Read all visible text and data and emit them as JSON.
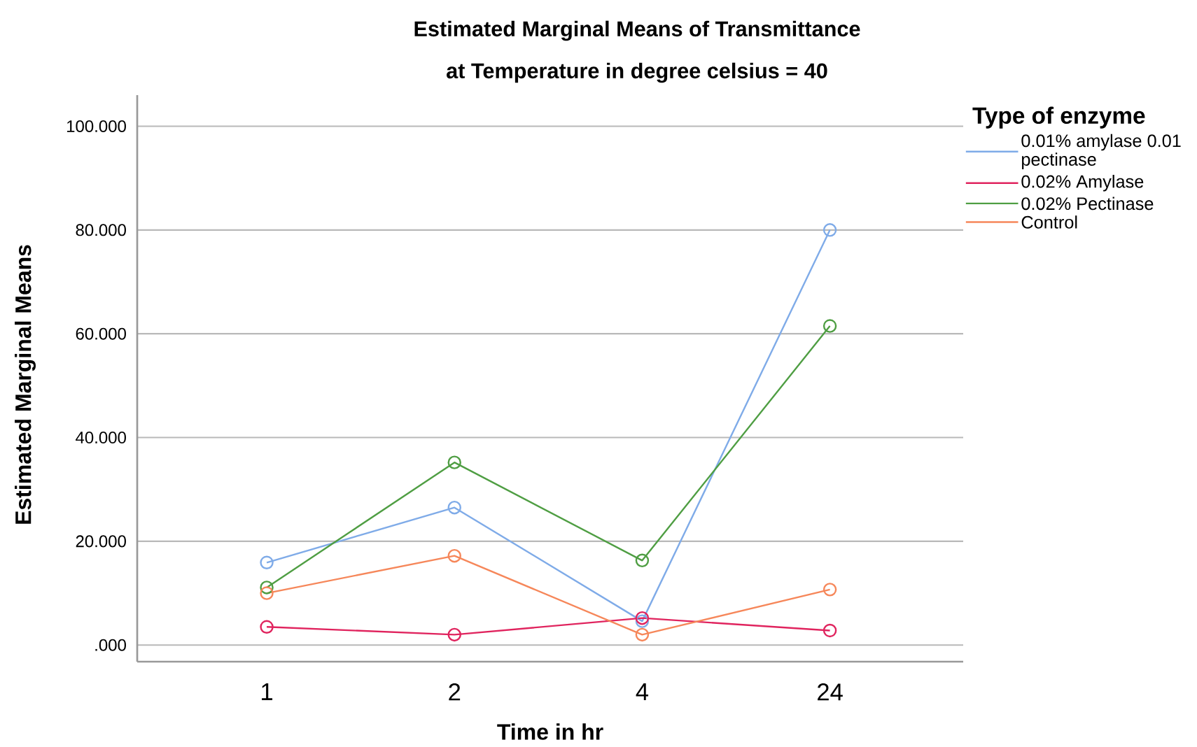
{
  "chart_data": {
    "type": "line",
    "title": [
      "Estimated Marginal Means of Transmittance",
      "at Temperature  in degree celsius = 40"
    ],
    "xlabel": "Time in hr",
    "ylabel": "Estimated Marginal Means",
    "legend_title": "Type of enzyme",
    "categories": [
      "1",
      "2",
      "4",
      "24"
    ],
    "series": [
      {
        "name": "0.01% amylase 0.01 pectinase",
        "color": "#7fabe8",
        "values": [
          15.9,
          26.5,
          4.6,
          80.0
        ]
      },
      {
        "name": "0.02% Amylase",
        "color": "#e0245e",
        "values": [
          3.5,
          2.0,
          5.2,
          2.8
        ]
      },
      {
        "name": "0.02% Pectinase",
        "color": "#4f9e43",
        "values": [
          11.1,
          35.2,
          16.3,
          61.5
        ]
      },
      {
        "name": "Control",
        "color": "#f6875a",
        "values": [
          10.0,
          17.2,
          2.0,
          10.7
        ]
      }
    ],
    "ylim": [
      -3.2,
      106
    ],
    "yticks": [
      {
        "value": 0,
        "label": ".000"
      },
      {
        "value": 20,
        "label": "20.000"
      },
      {
        "value": 40,
        "label": "40.000"
      },
      {
        "value": 60,
        "label": "60.000"
      },
      {
        "value": 80,
        "label": "80.000"
      },
      {
        "value": 100,
        "label": "100.000"
      }
    ],
    "grid": "y",
    "legend": "right",
    "marker": "circle",
    "line_style": "solid"
  }
}
